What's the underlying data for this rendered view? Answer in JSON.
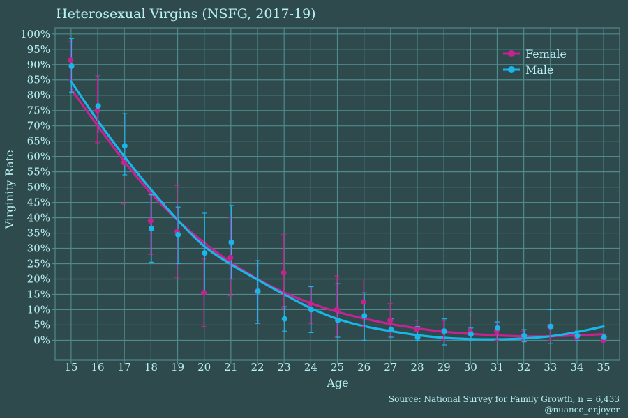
{
  "colors": {
    "background": "#2e4a4d",
    "grid": "#4f8a8c",
    "text": "#b8f0f4",
    "female": "#c5238f",
    "male": "#1bb6e9"
  },
  "chart_data": {
    "type": "scatter",
    "title": "Heterosexual Virgins (NSFG, 2017-19)",
    "xlabel": "Age",
    "ylabel": "Virginity Rate",
    "x": [
      15,
      16,
      17,
      18,
      19,
      20,
      21,
      22,
      23,
      24,
      25,
      26,
      27,
      28,
      29,
      30,
      31,
      32,
      33,
      34,
      35
    ],
    "xlim": [
      14.4,
      35.6
    ],
    "ylim": [
      -0.065,
      1.02
    ],
    "yticks": [
      0,
      0.05,
      0.1,
      0.15,
      0.2,
      0.25,
      0.3,
      0.35,
      0.4,
      0.45,
      0.5,
      0.55,
      0.6,
      0.65,
      0.7,
      0.75,
      0.8,
      0.85,
      0.9,
      0.95,
      1.0
    ],
    "ytick_labels": [
      "0%",
      "5%",
      "10%",
      "15%",
      "20%",
      "25%",
      "30%",
      "35%",
      "40%",
      "45%",
      "50%",
      "55%",
      "60%",
      "65%",
      "70%",
      "75%",
      "80%",
      "85%",
      "90%",
      "95%",
      "100%"
    ],
    "grid": true,
    "legend_position": "top-right",
    "series": [
      {
        "name": "Female",
        "values": [
          0.915,
          0.75,
          0.58,
          0.39,
          0.355,
          0.155,
          0.27,
          0.16,
          0.22,
          0.12,
          0.1,
          0.125,
          0.065,
          0.035,
          0.03,
          0.03,
          0.03,
          0.015,
          0.045,
          0.01,
          0.0
        ],
        "err_low": [
          0.85,
          0.645,
          0.445,
          0.28,
          0.205,
          0.045,
          0.145,
          0.065,
          0.105,
          0.055,
          0.01,
          0.045,
          0.01,
          0.005,
          0.0,
          0.0,
          0.0,
          0.0,
          0.0,
          0.0,
          0.0
        ],
        "err_high": [
          0.975,
          0.865,
          0.71,
          0.475,
          0.505,
          0.265,
          0.4,
          0.245,
          0.345,
          0.175,
          0.21,
          0.2,
          0.12,
          0.065,
          0.065,
          0.08,
          0.06,
          0.03,
          0.05,
          0.02,
          0.02
        ],
        "fit": [
          0.82,
          0.7,
          0.584,
          0.48,
          0.392,
          0.318,
          0.254,
          0.2,
          0.156,
          0.121,
          0.093,
          0.071,
          0.053,
          0.039,
          0.028,
          0.021,
          0.016,
          0.013,
          0.013,
          0.016,
          0.02
        ]
      },
      {
        "name": "Male",
        "values": [
          0.895,
          0.765,
          0.635,
          0.365,
          0.345,
          0.285,
          0.32,
          0.16,
          0.07,
          0.1,
          0.065,
          0.08,
          0.035,
          0.01,
          0.03,
          0.02,
          0.04,
          0.015,
          0.045,
          0.015,
          0.01
        ],
        "err_low": [
          0.81,
          0.68,
          0.54,
          0.255,
          0.25,
          0.155,
          0.2,
          0.055,
          0.03,
          0.025,
          0.01,
          0.0,
          0.01,
          0.0,
          -0.015,
          0.0,
          0.005,
          -0.005,
          -0.01,
          0.0,
          0.0
        ],
        "err_high": [
          0.985,
          0.86,
          0.74,
          0.475,
          0.435,
          0.415,
          0.44,
          0.26,
          0.11,
          0.175,
          0.185,
          0.155,
          0.07,
          0.045,
          0.07,
          0.04,
          0.06,
          0.035,
          0.1,
          0.03,
          0.02
        ],
        "fit": [
          0.845,
          0.717,
          0.6,
          0.492,
          0.393,
          0.307,
          0.248,
          0.198,
          0.15,
          0.105,
          0.07,
          0.046,
          0.03,
          0.017,
          0.008,
          0.004,
          0.003,
          0.006,
          0.013,
          0.027,
          0.045
        ]
      }
    ]
  },
  "source": "Source: National Survey for Family Growth, n = 6,433",
  "credit": "@nuance_enjoyer"
}
